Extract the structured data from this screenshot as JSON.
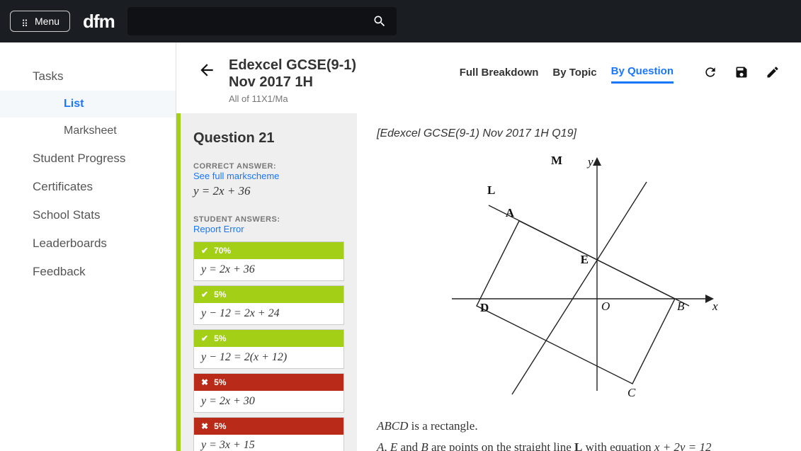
{
  "topbar": {
    "menu_label": "Menu",
    "brand": "dfm"
  },
  "sidebar": {
    "items": [
      {
        "label": "Tasks",
        "level": 0
      },
      {
        "label": "List",
        "level": 1,
        "active": true
      },
      {
        "label": "Marksheet",
        "level": 1
      },
      {
        "label": "Student Progress",
        "level": 0
      },
      {
        "label": "Certificates",
        "level": 0
      },
      {
        "label": "School Stats",
        "level": 0
      },
      {
        "label": "Leaderboards",
        "level": 0
      },
      {
        "label": "Feedback",
        "level": 0
      }
    ]
  },
  "header": {
    "title_line1": "Edexcel GCSE(9-1)",
    "title_line2": "Nov 2017 1H",
    "subtitle": "All of 11X1/Ma",
    "tabs": [
      "Full Breakdown",
      "By Topic",
      "By Question"
    ],
    "active_tab": 2
  },
  "question_panel": {
    "title": "Question 21",
    "correct_label": "CORRECT ANSWER:",
    "markscheme_link": "See full markscheme",
    "correct_answer": "y = 2x + 36",
    "student_label": "STUDENT ANSWERS:",
    "report_link": "Report Error",
    "answers": [
      {
        "status": "ok",
        "pct": "70%",
        "expr": "y = 2x + 36"
      },
      {
        "status": "ok",
        "pct": "5%",
        "expr": "y − 12 = 2x + 24"
      },
      {
        "status": "ok",
        "pct": "5%",
        "expr": "y − 12 = 2(x + 12)"
      },
      {
        "status": "bad",
        "pct": "5%",
        "expr": "y = 2x + 30"
      },
      {
        "status": "bad",
        "pct": "5%",
        "expr": "y = 3x + 15"
      }
    ]
  },
  "question_body": {
    "source": "[Edexcel GCSE(9-1) Nov 2017 1H Q19]",
    "diagram": {
      "labels": {
        "M": "M",
        "L": "L",
        "A": "A",
        "E": "E",
        "D": "D",
        "O": "O",
        "B": "B",
        "C": "C",
        "xaxis": "x",
        "yaxis": "y"
      },
      "stroke": "#222",
      "stroke_width": 1.5
    },
    "para1_prefix": "ABCD",
    "para1_rest": " is a rectangle.",
    "para2_pre": "A",
    "para2_mid1": ", ",
    "para2_e": "E",
    "para2_mid2": " and ",
    "para2_b": "B",
    "para2_mid3": " are points on the straight line ",
    "para2_L": "L",
    "para2_mid4": " with equation ",
    "para2_eq": "x + 2y = 12"
  },
  "colors": {
    "accent_green": "#a4cf17",
    "accent_red": "#b92b18",
    "link_blue": "#1976ff",
    "topbar_bg": "#1a1d22",
    "panel_bg": "#efefef"
  }
}
